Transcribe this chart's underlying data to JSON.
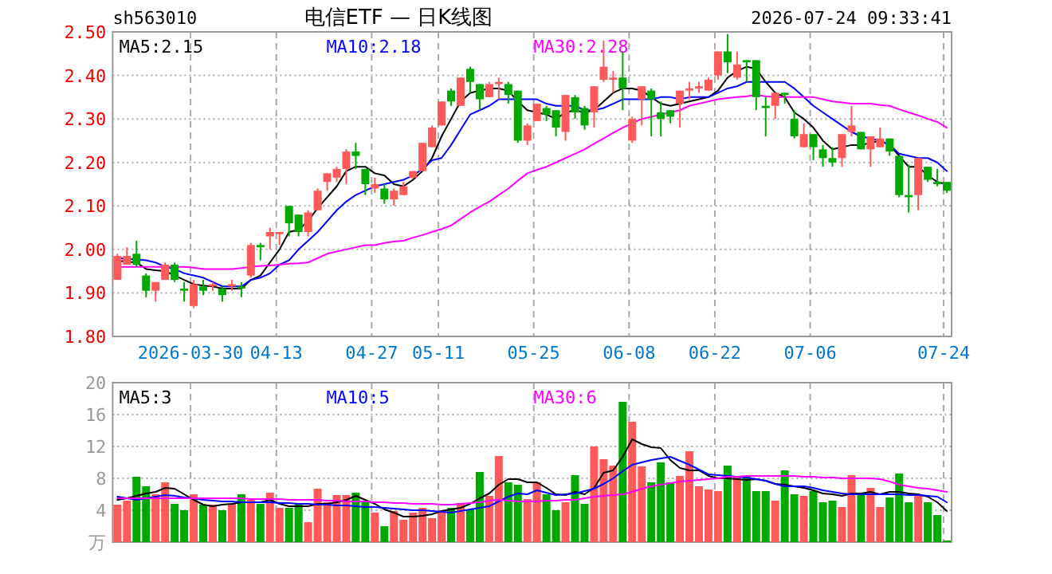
{
  "chart_data": [
    {
      "type": "candlestick",
      "title": "电信ETF — 日K线图",
      "subtitle": "sh563010",
      "annotations": [
        "2026-07-24 09:33:41"
      ],
      "grid": true,
      "legend": "top",
      "categories": [
        null,
        null,
        null,
        null,
        null,
        null,
        null,
        null,
        "2026-03-30",
        null,
        null,
        null,
        null,
        null,
        null,
        null,
        null,
        "04-13",
        null,
        null,
        null,
        null,
        null,
        null,
        null,
        null,
        null,
        "04-27",
        null,
        null,
        null,
        null,
        null,
        null,
        "05-11",
        null,
        null,
        null,
        null,
        null,
        null,
        null,
        null,
        null,
        "05-25",
        null,
        null,
        null,
        null,
        null,
        null,
        null,
        null,
        null,
        "06-08",
        null,
        null,
        null,
        null,
        null,
        null,
        null,
        null,
        "06-22",
        null,
        null,
        null,
        null,
        null,
        null,
        null,
        null,
        null,
        "07-06",
        null,
        null,
        null,
        null,
        null,
        null,
        null,
        null,
        null,
        null,
        null,
        null,
        null,
        "07-24"
      ],
      "ylim": [
        1.8,
        2.5
      ],
      "yticks": [
        {
          "value": 1.8,
          "label": "1.80"
        },
        {
          "value": 1.9,
          "label": "1.90"
        },
        {
          "value": 2.0,
          "label": "2.00"
        },
        {
          "value": 2.1,
          "label": "2.10"
        },
        {
          "value": 2.2,
          "label": "2.20"
        },
        {
          "value": 2.3,
          "label": "2.30"
        },
        {
          "value": 2.4,
          "label": "2.40"
        },
        {
          "value": 2.5,
          "label": "2.50"
        }
      ],
      "ohlc": [
        [
          1.93,
          1.99,
          1.93,
          1.985
        ],
        [
          1.965,
          2.005,
          1.965,
          1.985
        ],
        [
          1.99,
          2.02,
          1.96,
          1.965
        ],
        [
          1.94,
          1.945,
          1.89,
          1.905
        ],
        [
          1.905,
          1.925,
          1.88,
          1.925
        ],
        [
          1.93,
          1.97,
          1.93,
          1.965
        ],
        [
          1.965,
          1.97,
          1.925,
          1.93
        ],
        [
          1.91,
          1.925,
          1.88,
          1.905
        ],
        [
          1.87,
          1.93,
          1.865,
          1.92
        ],
        [
          1.915,
          1.93,
          1.895,
          1.905
        ],
        [
          1.915,
          1.925,
          1.905,
          1.92
        ],
        [
          1.91,
          1.915,
          1.88,
          1.895
        ],
        [
          1.915,
          1.93,
          1.905,
          1.92
        ],
        [
          1.915,
          1.925,
          1.89,
          1.91
        ],
        [
          1.94,
          2.015,
          1.935,
          2.01
        ],
        [
          2.01,
          2.015,
          1.975,
          2.005
        ],
        [
          2.03,
          2.05,
          2.0,
          2.04
        ],
        [
          2.035,
          2.04,
          2.01,
          2.04
        ],
        [
          2.1,
          2.1,
          2.03,
          2.06
        ],
        [
          2.08,
          2.08,
          2.03,
          2.04
        ],
        [
          2.04,
          2.09,
          2.03,
          2.085
        ],
        [
          2.09,
          2.14,
          2.09,
          2.135
        ],
        [
          2.155,
          2.175,
          2.135,
          2.175
        ],
        [
          2.165,
          2.19,
          2.155,
          2.185
        ],
        [
          2.185,
          2.23,
          2.15,
          2.225
        ],
        [
          2.225,
          2.245,
          2.185,
          2.215
        ],
        [
          2.185,
          2.185,
          2.125,
          2.15
        ],
        [
          2.14,
          2.165,
          2.13,
          2.15
        ],
        [
          2.14,
          2.15,
          2.105,
          2.115
        ],
        [
          2.115,
          2.14,
          2.1,
          2.135
        ],
        [
          2.125,
          2.155,
          2.125,
          2.145
        ],
        [
          2.165,
          2.18,
          2.162,
          2.18
        ],
        [
          2.18,
          2.245,
          2.18,
          2.245
        ],
        [
          2.235,
          2.285,
          2.235,
          2.28
        ],
        [
          2.285,
          2.34,
          2.285,
          2.34
        ],
        [
          2.365,
          2.37,
          2.33,
          2.34
        ],
        [
          2.33,
          2.395,
          2.33,
          2.395
        ],
        [
          2.415,
          2.42,
          2.36,
          2.385
        ],
        [
          2.38,
          2.38,
          2.32,
          2.345
        ],
        [
          2.35,
          2.385,
          2.35,
          2.38
        ],
        [
          2.38,
          2.395,
          2.345,
          2.385
        ],
        [
          2.38,
          2.385,
          2.335,
          2.355
        ],
        [
          2.365,
          2.365,
          2.245,
          2.25
        ],
        [
          2.25,
          2.29,
          2.24,
          2.285
        ],
        [
          2.295,
          2.335,
          2.295,
          2.335
        ],
        [
          2.325,
          2.33,
          2.295,
          2.31
        ],
        [
          2.32,
          2.32,
          2.26,
          2.28
        ],
        [
          2.27,
          2.355,
          2.25,
          2.355
        ],
        [
          2.35,
          2.355,
          2.3,
          2.315
        ],
        [
          2.325,
          2.33,
          2.275,
          2.285
        ],
        [
          2.315,
          2.375,
          2.28,
          2.375
        ],
        [
          2.39,
          2.48,
          2.385,
          2.42
        ],
        [
          2.39,
          2.41,
          2.36,
          2.395
        ],
        [
          2.395,
          2.455,
          2.32,
          2.37
        ],
        [
          2.25,
          2.305,
          2.245,
          2.3
        ],
        [
          2.345,
          2.375,
          2.285,
          2.375
        ],
        [
          2.365,
          2.37,
          2.26,
          2.345
        ],
        [
          2.315,
          2.34,
          2.26,
          2.3
        ],
        [
          2.32,
          2.32,
          2.29,
          2.305
        ],
        [
          2.335,
          2.365,
          2.28,
          2.365
        ],
        [
          2.365,
          2.385,
          2.345,
          2.37
        ],
        [
          2.37,
          2.385,
          2.36,
          2.375
        ],
        [
          2.365,
          2.395,
          2.365,
          2.39
        ],
        [
          2.4,
          2.455,
          2.39,
          2.455
        ],
        [
          2.455,
          2.495,
          2.405,
          2.43
        ],
        [
          2.395,
          2.455,
          2.39,
          2.425
        ],
        [
          2.435,
          2.435,
          2.385,
          2.43
        ],
        [
          2.435,
          2.435,
          2.32,
          2.35
        ],
        [
          2.33,
          2.35,
          2.26,
          2.325
        ],
        [
          2.33,
          2.36,
          2.3,
          2.36
        ],
        [
          2.36,
          2.36,
          2.335,
          2.355
        ],
        [
          2.3,
          2.32,
          2.255,
          2.26
        ],
        [
          2.235,
          2.29,
          2.235,
          2.265
        ],
        [
          2.265,
          2.265,
          2.205,
          2.235
        ],
        [
          2.23,
          2.24,
          2.19,
          2.21
        ],
        [
          2.21,
          2.235,
          2.19,
          2.2
        ],
        [
          2.21,
          2.265,
          2.19,
          2.265
        ],
        [
          2.27,
          2.33,
          2.26,
          2.285
        ],
        [
          2.27,
          2.27,
          2.23,
          2.23
        ],
        [
          2.23,
          2.26,
          2.19,
          2.26
        ],
        [
          2.235,
          2.28,
          2.235,
          2.255
        ],
        [
          2.255,
          2.255,
          2.215,
          2.225
        ],
        [
          2.215,
          2.215,
          2.12,
          2.125
        ],
        [
          2.125,
          2.195,
          2.085,
          2.12
        ],
        [
          2.125,
          2.21,
          2.09,
          2.21
        ],
        [
          2.19,
          2.19,
          2.155,
          2.16
        ],
        [
          2.155,
          2.185,
          2.145,
          2.15
        ],
        [
          2.155,
          2.155,
          2.13,
          2.135
        ]
      ],
      "colors": [
        "#ff5a5a",
        "#ff5a5a",
        "#00a800",
        "#00a800",
        "#ff5a5a",
        "#ff5a5a",
        "#00a800",
        "#00a800",
        "#ff5a5a",
        "#00a800",
        "#ff5a5a",
        "#00a800",
        "#ff5a5a",
        "#00a800",
        "#ff5a5a",
        "#00a800",
        "#ff5a5a",
        "#ff5a5a",
        "#00a800",
        "#00a800",
        "#ff5a5a",
        "#ff5a5a",
        "#ff5a5a",
        "#ff5a5a",
        "#ff5a5a",
        "#00a800",
        "#00a800",
        "#ff5a5a",
        "#00a800",
        "#ff5a5a",
        "#ff5a5a",
        "#ff5a5a",
        "#ff5a5a",
        "#ff5a5a",
        "#ff5a5a",
        "#00a800",
        "#ff5a5a",
        "#00a800",
        "#00a800",
        "#ff5a5a",
        "#ff5a5a",
        "#00a800",
        "#00a800",
        "#ff5a5a",
        "#ff5a5a",
        "#00a800",
        "#00a800",
        "#ff5a5a",
        "#00a800",
        "#00a800",
        "#ff5a5a",
        "#ff5a5a",
        "#ff5a5a",
        "#00a800",
        "#ff5a5a",
        "#ff5a5a",
        "#00a800",
        "#00a800",
        "#00a800",
        "#ff5a5a",
        "#ff5a5a",
        "#ff5a5a",
        "#ff5a5a",
        "#ff5a5a",
        "#00a800",
        "#ff5a5a",
        "#00a800",
        "#00a800",
        "#00a800",
        "#ff5a5a",
        "#00a800",
        "#00a800",
        "#ff5a5a",
        "#00a800",
        "#00a800",
        "#00a800",
        "#ff5a5a",
        "#ff5a5a",
        "#00a800",
        "#ff5a5a",
        "#ff5a5a",
        "#00a800",
        "#00a800",
        "#00a800",
        "#ff5a5a",
        "#00a800",
        "#00a800",
        "#00a800"
      ],
      "series": [
        {
          "name": "MA5:2.15",
          "type": "line",
          "color": "#000000",
          "values": [
            1.974,
            1.972,
            1.97,
            1.955,
            1.952,
            1.95,
            1.94,
            1.93,
            1.92,
            1.917,
            1.915,
            1.91,
            1.91,
            1.91,
            1.93,
            1.94,
            1.97,
            2.0,
            2.04,
            2.045,
            2.065,
            2.095,
            2.12,
            2.145,
            2.18,
            2.19,
            2.19,
            2.175,
            2.17,
            2.15,
            2.145,
            2.16,
            2.18,
            2.21,
            2.26,
            2.3,
            2.34,
            2.36,
            2.365,
            2.37,
            2.37,
            2.365,
            2.34,
            2.32,
            2.315,
            2.31,
            2.3,
            2.315,
            2.32,
            2.315,
            2.32,
            2.34,
            2.36,
            2.37,
            2.37,
            2.365,
            2.35,
            2.335,
            2.33,
            2.335,
            2.34,
            2.345,
            2.35,
            2.365,
            2.395,
            2.41,
            2.42,
            2.415,
            2.385,
            2.36,
            2.35,
            2.315,
            2.3,
            2.28,
            2.25,
            2.23,
            2.235,
            2.24,
            2.24,
            2.245,
            2.25,
            2.24,
            2.215,
            2.19,
            2.19,
            2.17,
            2.155,
            2.15
          ]
        },
        {
          "name": "MA10:2.18",
          "type": "line",
          "color": "#0000ff",
          "values": [
            1.98,
            1.978,
            1.977,
            1.975,
            1.97,
            1.96,
            1.955,
            1.945,
            1.94,
            1.935,
            1.925,
            1.915,
            1.915,
            1.915,
            1.93,
            1.935,
            1.945,
            1.965,
            1.975,
            2.0,
            2.02,
            2.04,
            2.065,
            2.09,
            2.11,
            2.125,
            2.135,
            2.145,
            2.15,
            2.155,
            2.16,
            2.17,
            2.185,
            2.205,
            2.21,
            2.24,
            2.275,
            2.31,
            2.32,
            2.33,
            2.345,
            2.345,
            2.345,
            2.345,
            2.345,
            2.335,
            2.33,
            2.33,
            2.33,
            2.32,
            2.32,
            2.325,
            2.335,
            2.345,
            2.345,
            2.345,
            2.345,
            2.35,
            2.35,
            2.345,
            2.35,
            2.35,
            2.35,
            2.36,
            2.37,
            2.375,
            2.385,
            2.385,
            2.385,
            2.385,
            2.385,
            2.37,
            2.35,
            2.33,
            2.315,
            2.3,
            2.285,
            2.27,
            2.26,
            2.255,
            2.25,
            2.24,
            2.22,
            2.215,
            2.21,
            2.21,
            2.2,
            2.18
          ]
        },
        {
          "name": "MA30:2.28",
          "type": "line",
          "color": "#ff00ff",
          "values": [
            1.96,
            1.96,
            1.96,
            1.96,
            1.96,
            1.96,
            1.96,
            1.96,
            1.958,
            1.955,
            1.955,
            1.955,
            1.955,
            1.957,
            1.96,
            1.962,
            1.963,
            1.965,
            1.967,
            1.968,
            1.97,
            1.98,
            1.99,
            1.995,
            2.0,
            2.005,
            2.01,
            2.01,
            2.015,
            2.018,
            2.02,
            2.027,
            2.033,
            2.04,
            2.047,
            2.055,
            2.07,
            2.085,
            2.098,
            2.11,
            2.125,
            2.14,
            2.158,
            2.175,
            2.183,
            2.19,
            2.2,
            2.21,
            2.22,
            2.23,
            2.243,
            2.255,
            2.268,
            2.28,
            2.29,
            2.3,
            2.305,
            2.31,
            2.315,
            2.32,
            2.33,
            2.335,
            2.34,
            2.345,
            2.348,
            2.35,
            2.352,
            2.355,
            2.352,
            2.35,
            2.35,
            2.35,
            2.35,
            2.35,
            2.345,
            2.34,
            2.338,
            2.335,
            2.335,
            2.335,
            2.332,
            2.33,
            2.322,
            2.315,
            2.308,
            2.3,
            2.293,
            2.28
          ]
        }
      ]
    },
    {
      "type": "bar",
      "grid": true,
      "legend": "top",
      "tick_labels": "y",
      "categories": [
        null,
        null,
        null,
        null,
        null,
        null,
        null,
        null,
        null,
        null,
        null,
        null,
        null,
        null,
        null,
        null,
        null,
        null,
        null,
        null,
        null,
        null,
        null,
        null,
        null,
        null,
        null,
        null,
        null,
        null,
        null,
        null,
        null,
        null,
        null,
        null,
        null,
        null,
        null,
        null,
        null,
        null,
        null,
        null,
        null,
        null,
        null,
        null,
        null,
        null,
        null,
        null,
        null,
        null,
        null,
        null,
        null,
        null,
        null,
        null,
        null,
        null,
        null,
        null,
        null,
        null,
        null,
        null,
        null,
        null,
        null,
        null,
        null,
        null,
        null,
        null,
        null,
        null,
        null,
        null,
        null,
        null,
        null,
        null,
        null,
        null,
        null,
        null
      ],
      "ylim": [
        0,
        20
      ],
      "yticks": [
        {
          "value": 0,
          "label": "万"
        },
        4,
        8,
        12,
        16,
        20
      ],
      "series": [
        {
          "type": "bar",
          "colors": [
            "#ff5a5a",
            "#ff5a5a",
            "#00a800",
            "#00a800",
            "#ff5a5a",
            "#ff5a5a",
            "#00a800",
            "#00a800",
            "#ff5a5a",
            "#00a800",
            "#ff5a5a",
            "#00a800",
            "#ff5a5a",
            "#00a800",
            "#ff5a5a",
            "#00a800",
            "#ff5a5a",
            "#ff5a5a",
            "#00a800",
            "#00a800",
            "#ff5a5a",
            "#ff5a5a",
            "#ff5a5a",
            "#ff5a5a",
            "#ff5a5a",
            "#00a800",
            "#00a800",
            "#ff5a5a",
            "#00a800",
            "#ff5a5a",
            "#ff5a5a",
            "#ff5a5a",
            "#ff5a5a",
            "#ff5a5a",
            "#ff5a5a",
            "#00a800",
            "#ff5a5a",
            "#00a800",
            "#00a800",
            "#ff5a5a",
            "#ff5a5a",
            "#00a800",
            "#00a800",
            "#ff5a5a",
            "#ff5a5a",
            "#00a800",
            "#00a800",
            "#ff5a5a",
            "#00a800",
            "#00a800",
            "#ff5a5a",
            "#ff5a5a",
            "#ff5a5a",
            "#00a800",
            "#ff5a5a",
            "#ff5a5a",
            "#00a800",
            "#00a800",
            "#00a800",
            "#ff5a5a",
            "#ff5a5a",
            "#ff5a5a",
            "#ff5a5a",
            "#ff5a5a",
            "#00a800",
            "#ff5a5a",
            "#00a800",
            "#00a800",
            "#00a800",
            "#ff5a5a",
            "#00a800",
            "#00a800",
            "#ff5a5a",
            "#00a800",
            "#00a800",
            "#00a800",
            "#ff5a5a",
            "#ff5a5a",
            "#00a800",
            "#ff5a5a",
            "#ff5a5a",
            "#00a800",
            "#00a800",
            "#00a800",
            "#ff5a5a",
            "#00a800",
            "#00a800",
            "#00a800"
          ],
          "values": [
            4.7,
            5.2,
            8.2,
            7.0,
            6.0,
            7.5,
            4.8,
            4.0,
            6.0,
            4.7,
            4.7,
            4.0,
            4.8,
            6.0,
            5.3,
            4.8,
            6.2,
            4.3,
            4.3,
            4.8,
            2.5,
            6.7,
            5.0,
            5.9,
            5.9,
            6.2,
            5.0,
            3.7,
            2.0,
            3.9,
            2.8,
            3.7,
            4.3,
            3.0,
            4.0,
            4.3,
            4.9,
            4.1,
            8.8,
            5.8,
            10.8,
            7.5,
            7.2,
            5.4,
            7.5,
            6.0,
            4.0,
            5.0,
            8.4,
            4.8,
            12.0,
            10.4,
            9.6,
            17.6,
            15.1,
            9.5,
            7.5,
            10.0,
            7.5,
            8.3,
            11.4,
            7.0,
            6.6,
            6.4,
            9.6,
            8.3,
            8.3,
            6.4,
            6.4,
            5.2,
            9.0,
            6.0,
            5.8,
            6.4,
            5.0,
            5.2,
            4.4,
            8.4,
            6.2,
            6.8,
            4.4,
            5.6,
            8.6,
            5.0,
            5.8,
            5.0,
            3.4,
            0.2
          ]
        },
        {
          "name": "MA5:3",
          "type": "line",
          "color": "#000000",
          "values": [
            5.3,
            5.5,
            5.8,
            6.1,
            6.3,
            6.8,
            6.7,
            6.0,
            5.3,
            4.7,
            4.5,
            4.7,
            4.8,
            5.0,
            5.0,
            5.0,
            5.3,
            4.8,
            4.5,
            4.5,
            4.5,
            4.8,
            4.8,
            5.0,
            5.3,
            5.8,
            5.3,
            4.8,
            4.1,
            3.7,
            3.2,
            3.2,
            3.3,
            3.5,
            3.9,
            4.1,
            4.3,
            4.8,
            5.5,
            6.1,
            7.2,
            7.9,
            7.9,
            7.5,
            7.5,
            6.8,
            6.0,
            5.9,
            6.3,
            6.0,
            6.8,
            8.7,
            9.0,
            10.7,
            12.9,
            12.3,
            11.9,
            11.8,
            10.3,
            9.3,
            9.0,
            9.0,
            8.3,
            8.0,
            8.0,
            7.9,
            7.8,
            7.9,
            7.7,
            7.3,
            7.2,
            7.0,
            6.8,
            6.5,
            6.1,
            6.0,
            5.8,
            6.1,
            6.1,
            6.3,
            6.0,
            6.3,
            6.3,
            6.1,
            6.0,
            5.7,
            5.0,
            3.9
          ]
        },
        {
          "name": "MA10:5",
          "type": "line",
          "color": "#0000ff",
          "values": [
            5.7,
            5.5,
            5.3,
            5.5,
            5.7,
            5.9,
            5.8,
            5.6,
            5.5,
            5.3,
            5.2,
            5.1,
            5.1,
            5.0,
            5.0,
            5.0,
            5.0,
            4.9,
            4.9,
            4.8,
            4.8,
            4.7,
            4.7,
            4.6,
            4.6,
            4.5,
            4.4,
            4.4,
            4.3,
            4.2,
            4.1,
            4.0,
            4.0,
            3.9,
            3.8,
            3.7,
            3.9,
            4.1,
            4.3,
            4.5,
            5.1,
            5.7,
            6.1,
            6.0,
            6.5,
            6.2,
            5.9,
            6.0,
            6.1,
            6.4,
            6.7,
            7.3,
            8.0,
            8.9,
            9.7,
            10.0,
            10.3,
            10.5,
            10.7,
            10.2,
            9.7,
            9.1,
            8.5,
            8.4,
            8.3,
            8.2,
            8.1,
            7.9,
            7.7,
            7.3,
            7.0,
            7.0,
            7.0,
            6.8,
            6.5,
            6.3,
            6.1,
            6.0,
            6.0,
            6.0,
            6.0,
            6.0,
            6.0,
            5.9,
            5.9,
            5.8,
            5.7,
            5.0
          ]
        },
        {
          "name": "MA30:6",
          "type": "line",
          "color": "#ff00ff",
          "values": [
            5.5,
            5.5,
            5.5,
            5.5,
            5.5,
            5.5,
            5.5,
            5.5,
            5.5,
            5.5,
            5.5,
            5.5,
            5.5,
            5.5,
            5.4,
            5.4,
            5.4,
            5.4,
            5.3,
            5.3,
            5.3,
            5.3,
            5.2,
            5.2,
            5.1,
            5.1,
            5.1,
            5.0,
            5.0,
            4.9,
            4.9,
            4.8,
            4.8,
            4.8,
            4.7,
            4.7,
            4.8,
            4.9,
            5.0,
            5.2,
            5.3,
            5.2,
            5.1,
            5.1,
            5.1,
            5.2,
            5.2,
            5.3,
            5.3,
            5.5,
            5.7,
            5.8,
            5.9,
            6.0,
            6.3,
            6.7,
            7.0,
            7.2,
            7.4,
            7.6,
            7.7,
            7.8,
            7.9,
            8.0,
            8.2,
            8.2,
            8.3,
            8.3,
            8.3,
            8.3,
            8.3,
            8.3,
            8.2,
            8.2,
            8.1,
            8.1,
            8.0,
            8.0,
            8.0,
            8.0,
            7.9,
            7.6,
            7.2,
            7.0,
            6.8,
            6.7,
            6.5,
            6.3
          ]
        }
      ]
    }
  ]
}
